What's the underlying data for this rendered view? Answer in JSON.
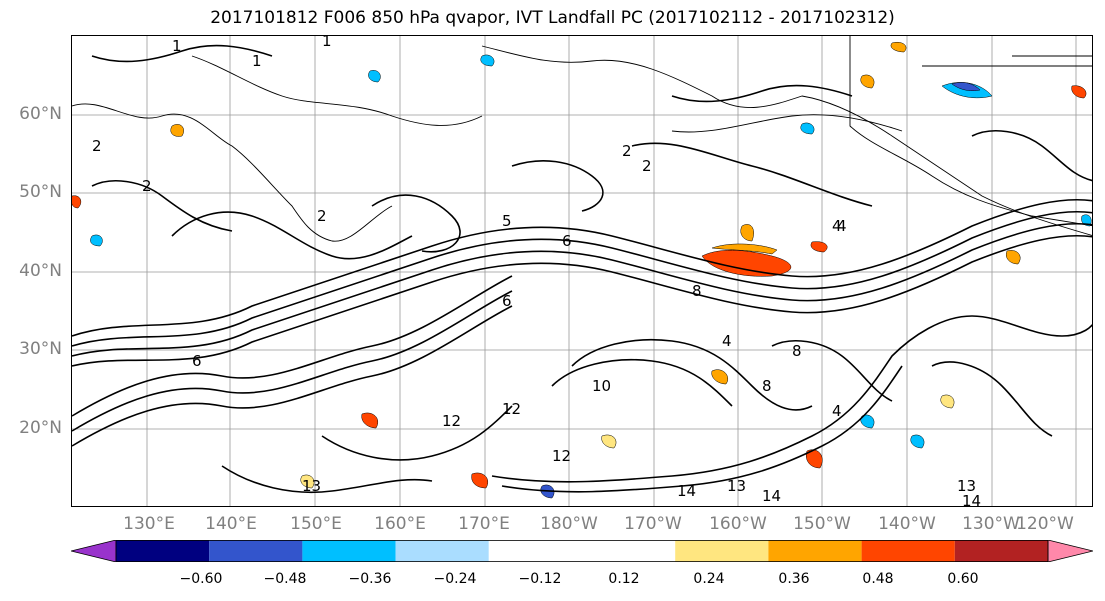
{
  "title": "2017101812 F006 850 hPa qvapor, IVT Landfall PC (2017102112 - 2017102312)",
  "lat_labels": [
    "60°N",
    "50°N",
    "40°N",
    "30°N",
    "20°N"
  ],
  "lon_labels": [
    "130°E",
    "140°E",
    "150°E",
    "160°E",
    "170°E",
    "180°W",
    "170°W",
    "160°W",
    "150°W",
    "140°W",
    "130°W",
    "120°W"
  ],
  "colorbar": {
    "colors": [
      "#9933cc",
      "#000080",
      "#3355cc",
      "#00bfff",
      "#aaddff",
      "#ffffff",
      "#ffffff",
      "#ffe680",
      "#ffa500",
      "#ff4500",
      "#b22222",
      "#ff88aa"
    ],
    "tick_labels": [
      "−0.60",
      "−0.48",
      "−0.36",
      "−0.24",
      "−0.12",
      "0.12",
      "0.24",
      "0.36",
      "0.48",
      "0.60"
    ]
  },
  "contour_labels": [
    "1",
    "1",
    "1",
    "2",
    "2",
    "2",
    "2",
    "2",
    "4",
    "4",
    "4",
    "4",
    "5",
    "6",
    "6",
    "6",
    "8",
    "8",
    "8",
    "10",
    "12",
    "12",
    "12",
    "13",
    "13",
    "13",
    "14",
    "14",
    "14"
  ]
}
